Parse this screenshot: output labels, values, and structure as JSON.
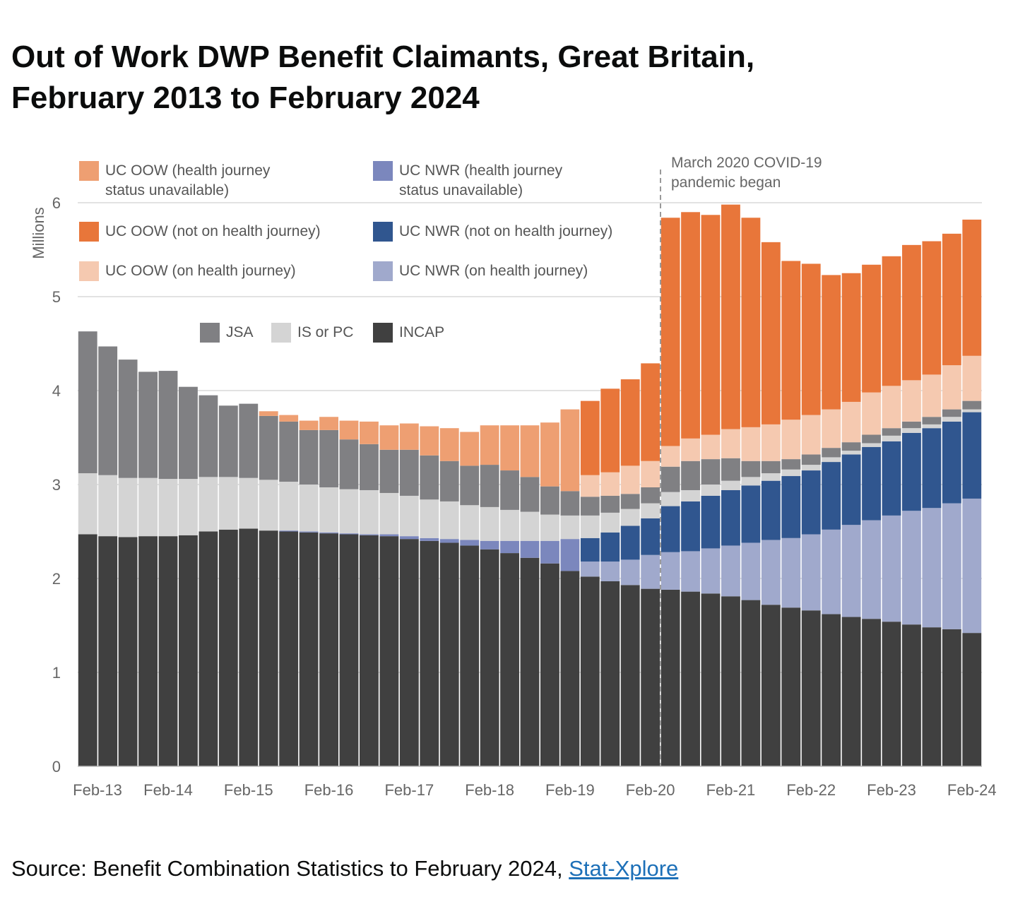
{
  "title_line1": "Out of Work DWP Benefit Claimants, Great Britain,",
  "title_line2": "February 2013 to February 2024",
  "source_text": "Source: Benefit Combination Statistics to February 2024, ",
  "source_link": "Stat-Xplore",
  "chart_data": {
    "type": "bar",
    "stacked": true,
    "title": "Out of Work DWP Benefit Claimants, Great Britain, February 2013 to February 2024",
    "ylabel": "Millions",
    "xlabel": "",
    "ylim": [
      0,
      6
    ],
    "y_ticks": [
      "0",
      "1",
      "2",
      "3",
      "4",
      "5",
      "6"
    ],
    "x_tick_labels": [
      "Feb-13",
      "Feb-14",
      "Feb-15",
      "Feb-16",
      "Feb-17",
      "Feb-18",
      "Feb-19",
      "Feb-20",
      "Feb-21",
      "Feb-22",
      "Feb-23",
      "Feb-24"
    ],
    "x_frequency": "quarterly",
    "grid": true,
    "annotation": [
      "March 2020 COVID-19",
      "pandemic began"
    ],
    "series": [
      {
        "name": "INCAP",
        "color": "#404040",
        "values": [
          2.47,
          2.45,
          2.44,
          2.45,
          2.45,
          2.46,
          2.5,
          2.52,
          2.53,
          2.51,
          2.5,
          2.49,
          2.48,
          2.47,
          2.46,
          2.45,
          2.42,
          2.4,
          2.38,
          2.35,
          2.31,
          2.27,
          2.22,
          2.16,
          2.08,
          2.02,
          1.97,
          1.93,
          1.89,
          1.88,
          1.86,
          1.84,
          1.81,
          1.77,
          1.72,
          1.69,
          1.66,
          1.62,
          1.59,
          1.57,
          1.54,
          1.51,
          1.48,
          1.46,
          1.42
        ]
      },
      {
        "name": "UC NWR (on health journey)",
        "color": "#a0a9cc",
        "values": [
          0,
          0,
          0,
          0,
          0,
          0,
          0,
          0,
          0,
          0,
          0,
          0,
          0,
          0,
          0,
          0,
          0,
          0,
          0,
          0,
          0,
          0,
          0,
          0,
          0,
          0.16,
          0.21,
          0.27,
          0.36,
          0.4,
          0.43,
          0.48,
          0.54,
          0.61,
          0.69,
          0.74,
          0.81,
          0.9,
          0.98,
          1.05,
          1.13,
          1.21,
          1.27,
          1.34,
          1.43
        ]
      },
      {
        "name": "UC NWR (not on health journey)",
        "color": "#30568f",
        "values": [
          0,
          0,
          0,
          0,
          0,
          0,
          0,
          0,
          0,
          0,
          0,
          0,
          0,
          0,
          0,
          0,
          0,
          0,
          0,
          0,
          0,
          0,
          0,
          0,
          0,
          0.25,
          0.31,
          0.36,
          0.39,
          0.49,
          0.53,
          0.56,
          0.59,
          0.61,
          0.63,
          0.66,
          0.68,
          0.72,
          0.75,
          0.78,
          0.79,
          0.83,
          0.85,
          0.87,
          0.92
        ]
      },
      {
        "name": "UC NWR (health journey status unavailable)",
        "color": "#7b87bd",
        "values": [
          0,
          0,
          0,
          0,
          0,
          0,
          0,
          0,
          0,
          0,
          0.01,
          0.01,
          0.01,
          0.01,
          0.01,
          0.02,
          0.03,
          0.03,
          0.04,
          0.06,
          0.09,
          0.13,
          0.18,
          0.24,
          0.34,
          0,
          0,
          0,
          0,
          0,
          0,
          0,
          0,
          0,
          0,
          0,
          0,
          0,
          0,
          0,
          0,
          0,
          0,
          0,
          0
        ]
      },
      {
        "name": "IS or PC",
        "color": "#d4d4d4",
        "values": [
          0.65,
          0.65,
          0.63,
          0.62,
          0.61,
          0.6,
          0.58,
          0.56,
          0.54,
          0.54,
          0.52,
          0.5,
          0.48,
          0.47,
          0.47,
          0.44,
          0.43,
          0.41,
          0.4,
          0.37,
          0.36,
          0.33,
          0.31,
          0.28,
          0.25,
          0.24,
          0.21,
          0.18,
          0.16,
          0.15,
          0.12,
          0.12,
          0.1,
          0.09,
          0.08,
          0.07,
          0.06,
          0.05,
          0.04,
          0.04,
          0.06,
          0.05,
          0.04,
          0.05,
          0.03
        ]
      },
      {
        "name": "JSA",
        "color": "#808083",
        "values": [
          1.51,
          1.37,
          1.26,
          1.13,
          1.15,
          0.98,
          0.87,
          0.76,
          0.79,
          0.68,
          0.64,
          0.58,
          0.61,
          0.53,
          0.49,
          0.46,
          0.49,
          0.47,
          0.43,
          0.42,
          0.45,
          0.42,
          0.37,
          0.3,
          0.26,
          0.2,
          0.18,
          0.16,
          0.17,
          0.27,
          0.31,
          0.27,
          0.24,
          0.17,
          0.13,
          0.11,
          0.11,
          0.1,
          0.09,
          0.09,
          0.08,
          0.07,
          0.08,
          0.08,
          0.09
        ]
      },
      {
        "name": "UC OOW (on health journey)",
        "color": "#f5c9b0",
        "values": [
          0,
          0,
          0,
          0,
          0,
          0,
          0,
          0,
          0,
          0,
          0,
          0,
          0,
          0,
          0,
          0,
          0,
          0,
          0,
          0,
          0,
          0,
          0,
          0,
          0,
          0.23,
          0.25,
          0.3,
          0.28,
          0.22,
          0.24,
          0.26,
          0.31,
          0.36,
          0.39,
          0.42,
          0.42,
          0.41,
          0.43,
          0.45,
          0.45,
          0.44,
          0.45,
          0.47,
          0.48
        ]
      },
      {
        "name": "UC OOW (health journey status unavailable)",
        "color": "#ee9f72",
        "values": [
          0,
          0,
          0,
          0,
          0,
          0,
          0,
          0,
          0,
          0.05,
          0.07,
          0.1,
          0.14,
          0.2,
          0.24,
          0.26,
          0.28,
          0.31,
          0.35,
          0.36,
          0.42,
          0.48,
          0.55,
          0.68,
          0.87,
          0,
          0,
          0,
          0,
          0,
          0,
          0,
          0,
          0,
          0,
          0,
          0,
          0,
          0,
          0,
          0,
          0,
          0,
          0,
          0
        ]
      },
      {
        "name": "UC OOW (not on health journey)",
        "color": "#e8763a",
        "values": [
          0,
          0,
          0,
          0,
          0,
          0,
          0,
          0,
          0,
          0,
          0,
          0,
          0,
          0,
          0,
          0,
          0,
          0,
          0,
          0,
          0,
          0,
          0,
          0,
          0,
          0.79,
          0.89,
          0.92,
          1.04,
          2.43,
          2.41,
          2.34,
          2.39,
          2.23,
          1.94,
          1.69,
          1.61,
          1.43,
          1.37,
          1.36,
          1.38,
          1.44,
          1.42,
          1.4,
          1.45
        ]
      }
    ],
    "legend": {
      "oow_unavail": [
        "UC OOW (health journey",
        "status unavailable)"
      ],
      "nwr_unavail": [
        "UC NWR (health journey",
        "status unavailable)"
      ],
      "oow_not": "UC OOW (not on health journey)",
      "nwr_not": "UC NWR (not on health journey)",
      "oow_on": "UC OOW (on health journey)",
      "nwr_on": "UC NWR (on health journey)",
      "jsa": "JSA",
      "is": "IS or PC",
      "incap": "INCAP"
    }
  }
}
